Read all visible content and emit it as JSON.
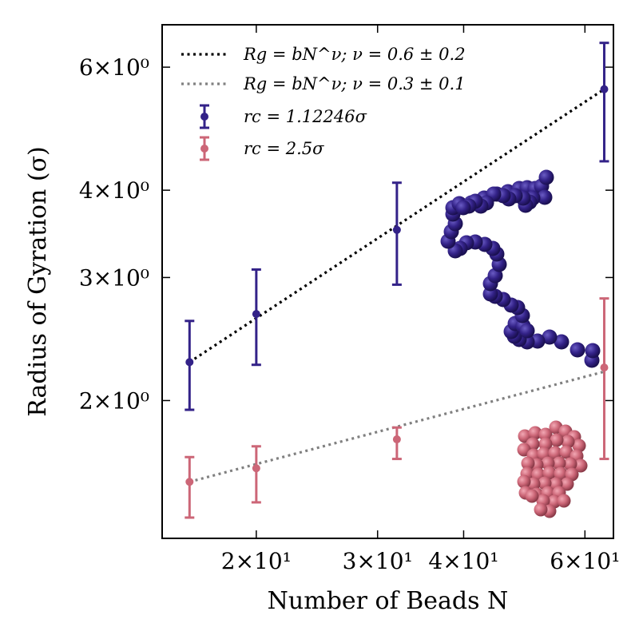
{
  "chart_data": {
    "type": "scatter",
    "xlabel": "Number of Beads N",
    "ylabel": "Radius of Gyration (σ)",
    "xscale": "log",
    "yscale": "log",
    "xlim": [
      14.6,
      66
    ],
    "ylim": [
      1.27,
      6.9
    ],
    "x_ticks": [
      {
        "value": 20,
        "label": "2×10¹"
      },
      {
        "value": 30,
        "label": "3×10¹"
      },
      {
        "value": 40,
        "label": "4×10¹"
      },
      {
        "value": 60,
        "label": "6×10¹"
      }
    ],
    "y_ticks": [
      {
        "value": 2,
        "label": "2×10⁰"
      },
      {
        "value": 3,
        "label": "3×10⁰"
      },
      {
        "value": 4,
        "label": "4×10⁰"
      },
      {
        "value": 6,
        "label": "6×10⁰"
      }
    ],
    "legend_position": "top-left",
    "series": [
      {
        "name": "r_c = 1.12246σ",
        "legend_label": "rc = 1.12246σ",
        "color": "#332288",
        "x": [
          16,
          20,
          32,
          64
        ],
        "y": [
          2.27,
          2.66,
          3.51,
          5.58
        ],
        "yerr_low": [
          1.94,
          2.25,
          2.93,
          4.4
        ],
        "yerr_high": [
          2.6,
          3.08,
          4.1,
          6.5
        ]
      },
      {
        "name": "r_c = 2.5σ",
        "legend_label": "rc = 2.5σ",
        "color": "#CC6677",
        "x": [
          16,
          20,
          32,
          64
        ],
        "y": [
          1.53,
          1.6,
          1.76,
          2.23
        ],
        "yerr_low": [
          1.36,
          1.43,
          1.65,
          1.65
        ],
        "yerr_high": [
          1.66,
          1.72,
          1.83,
          2.8
        ]
      }
    ],
    "fits": [
      {
        "label": "Rg = bN^ν;  ν = 0.6 ± 0.2",
        "color": "#000000",
        "style": "dotted",
        "x": [
          16,
          64
        ],
        "y": [
          2.27,
          5.58
        ]
      },
      {
        "label": "Rg = bN^ν;  ν = 0.3 ± 0.1",
        "color": "#808080",
        "style": "dotted",
        "x": [
          16,
          64
        ],
        "y": [
          1.53,
          2.2
        ]
      }
    ],
    "insets": [
      {
        "name": "extended-polymer",
        "color": "#332288"
      },
      {
        "name": "collapsed-polymer",
        "color": "#CC6677"
      }
    ]
  }
}
